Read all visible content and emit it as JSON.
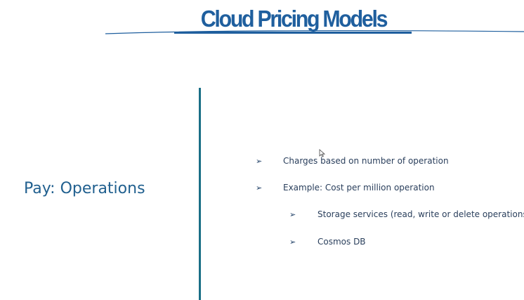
{
  "slide": {
    "title": "Cloud Pricing Models",
    "side_heading": "Pay: Operations",
    "bullets": [
      {
        "text": "Charges based on number of operation",
        "level": 1
      },
      {
        "text": "Example: Cost per million operation",
        "level": 1
      },
      {
        "text": "Storage services (read, write or delete operations)",
        "level": 2
      },
      {
        "text": "Cosmos DB",
        "level": 2
      }
    ],
    "bullet_glyph": "➢"
  },
  "colors": {
    "title": "#1f5f9e",
    "heading": "#21608f",
    "divider": "#1a6f86",
    "body_text": "#2a3f5c"
  },
  "icons": {
    "bullet": "arrow-bullet-icon",
    "pointer": "mouse-pointer-icon"
  }
}
